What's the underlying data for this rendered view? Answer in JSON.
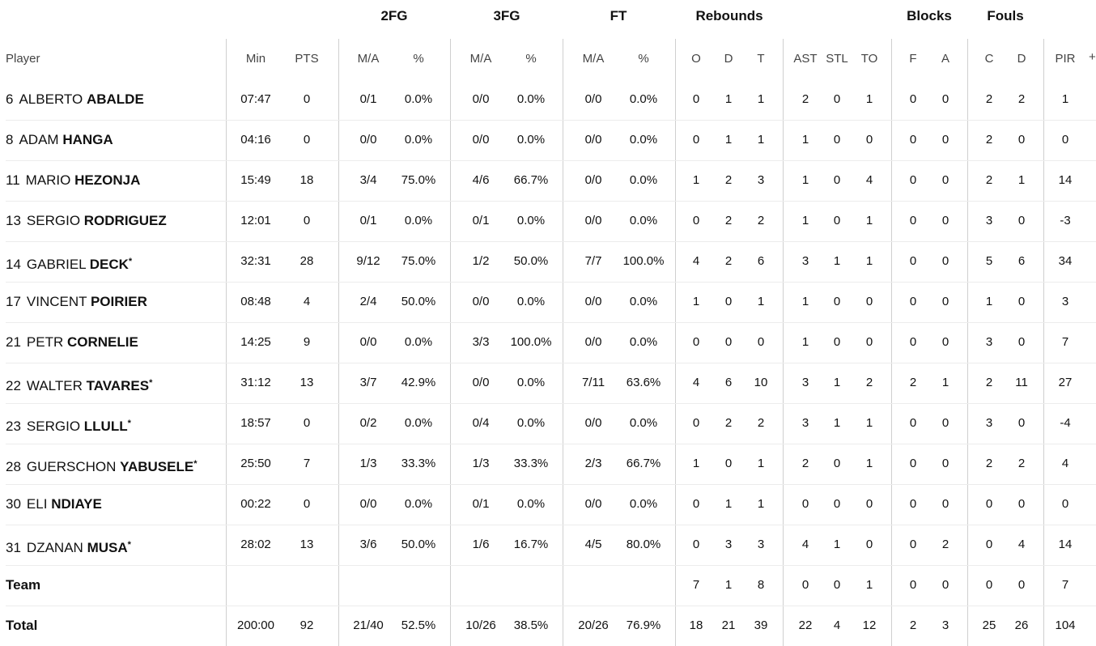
{
  "groups": [
    "2FG",
    "3FG",
    "FT",
    "Rebounds",
    "Blocks",
    "Fouls"
  ],
  "headers": [
    "Player",
    "Min",
    "PTS",
    "M/A",
    "%",
    "M/A",
    "%",
    "M/A",
    "%",
    "O",
    "D",
    "T",
    "AST",
    "STL",
    "TO",
    "F",
    "A",
    "C",
    "D",
    "PIR"
  ],
  "plus_label": "+",
  "players": [
    {
      "num": "6",
      "first": "ALBERTO",
      "last": "ABALDE",
      "star": false,
      "stats": [
        "07:47",
        "0",
        "0/1",
        "0.0%",
        "0/0",
        "0.0%",
        "0/0",
        "0.0%",
        "0",
        "1",
        "1",
        "2",
        "0",
        "1",
        "0",
        "0",
        "2",
        "2",
        "1"
      ]
    },
    {
      "num": "8",
      "first": "ADAM",
      "last": "HANGA",
      "star": false,
      "stats": [
        "04:16",
        "0",
        "0/0",
        "0.0%",
        "0/0",
        "0.0%",
        "0/0",
        "0.0%",
        "0",
        "1",
        "1",
        "1",
        "0",
        "0",
        "0",
        "0",
        "2",
        "0",
        "0"
      ]
    },
    {
      "num": "11",
      "first": "MARIO",
      "last": "HEZONJA",
      "star": false,
      "stats": [
        "15:49",
        "18",
        "3/4",
        "75.0%",
        "4/6",
        "66.7%",
        "0/0",
        "0.0%",
        "1",
        "2",
        "3",
        "1",
        "0",
        "4",
        "0",
        "0",
        "2",
        "1",
        "14"
      ]
    },
    {
      "num": "13",
      "first": "SERGIO",
      "last": "RODRIGUEZ",
      "star": false,
      "stats": [
        "12:01",
        "0",
        "0/1",
        "0.0%",
        "0/1",
        "0.0%",
        "0/0",
        "0.0%",
        "0",
        "2",
        "2",
        "1",
        "0",
        "1",
        "0",
        "0",
        "3",
        "0",
        "-3"
      ]
    },
    {
      "num": "14",
      "first": "GABRIEL",
      "last": "DECK",
      "star": true,
      "stats": [
        "32:31",
        "28",
        "9/12",
        "75.0%",
        "1/2",
        "50.0%",
        "7/7",
        "100.0%",
        "4",
        "2",
        "6",
        "3",
        "1",
        "1",
        "0",
        "0",
        "5",
        "6",
        "34"
      ]
    },
    {
      "num": "17",
      "first": "VINCENT",
      "last": "POIRIER",
      "star": false,
      "stats": [
        "08:48",
        "4",
        "2/4",
        "50.0%",
        "0/0",
        "0.0%",
        "0/0",
        "0.0%",
        "1",
        "0",
        "1",
        "1",
        "0",
        "0",
        "0",
        "0",
        "1",
        "0",
        "3"
      ]
    },
    {
      "num": "21",
      "first": "PETR",
      "last": "CORNELIE",
      "star": false,
      "stats": [
        "14:25",
        "9",
        "0/0",
        "0.0%",
        "3/3",
        "100.0%",
        "0/0",
        "0.0%",
        "0",
        "0",
        "0",
        "1",
        "0",
        "0",
        "0",
        "0",
        "3",
        "0",
        "7"
      ]
    },
    {
      "num": "22",
      "first": "WALTER",
      "last": "TAVARES",
      "star": true,
      "stats": [
        "31:12",
        "13",
        "3/7",
        "42.9%",
        "0/0",
        "0.0%",
        "7/11",
        "63.6%",
        "4",
        "6",
        "10",
        "3",
        "1",
        "2",
        "2",
        "1",
        "2",
        "11",
        "27"
      ]
    },
    {
      "num": "23",
      "first": "SERGIO",
      "last": "LLULL",
      "star": true,
      "stats": [
        "18:57",
        "0",
        "0/2",
        "0.0%",
        "0/4",
        "0.0%",
        "0/0",
        "0.0%",
        "0",
        "2",
        "2",
        "3",
        "1",
        "1",
        "0",
        "0",
        "3",
        "0",
        "-4"
      ]
    },
    {
      "num": "28",
      "first": "GUERSCHON",
      "last": "YABUSELE",
      "star": true,
      "stats": [
        "25:50",
        "7",
        "1/3",
        "33.3%",
        "1/3",
        "33.3%",
        "2/3",
        "66.7%",
        "1",
        "0",
        "1",
        "2",
        "0",
        "1",
        "0",
        "0",
        "2",
        "2",
        "4"
      ]
    },
    {
      "num": "30",
      "first": "ELI",
      "last": "NDIAYE",
      "star": false,
      "stats": [
        "00:22",
        "0",
        "0/0",
        "0.0%",
        "0/1",
        "0.0%",
        "0/0",
        "0.0%",
        "0",
        "1",
        "1",
        "0",
        "0",
        "0",
        "0",
        "0",
        "0",
        "0",
        "0"
      ]
    },
    {
      "num": "31",
      "first": "DZANAN",
      "last": "MUSA",
      "star": true,
      "stats": [
        "28:02",
        "13",
        "3/6",
        "50.0%",
        "1/6",
        "16.7%",
        "4/5",
        "80.0%",
        "0",
        "3",
        "3",
        "4",
        "1",
        "0",
        "0",
        "2",
        "0",
        "4",
        "14"
      ]
    }
  ],
  "team": {
    "label": "Team",
    "stats": [
      "",
      "",
      "",
      "",
      "",
      "",
      "",
      "",
      "7",
      "1",
      "8",
      "0",
      "0",
      "1",
      "0",
      "0",
      "0",
      "0",
      "7"
    ]
  },
  "total": {
    "label": "Total",
    "stats": [
      "200:00",
      "92",
      "21/40",
      "52.5%",
      "10/26",
      "38.5%",
      "20/26",
      "76.9%",
      "18",
      "21",
      "39",
      "22",
      "4",
      "12",
      "2",
      "3",
      "25",
      "26",
      "104"
    ]
  }
}
